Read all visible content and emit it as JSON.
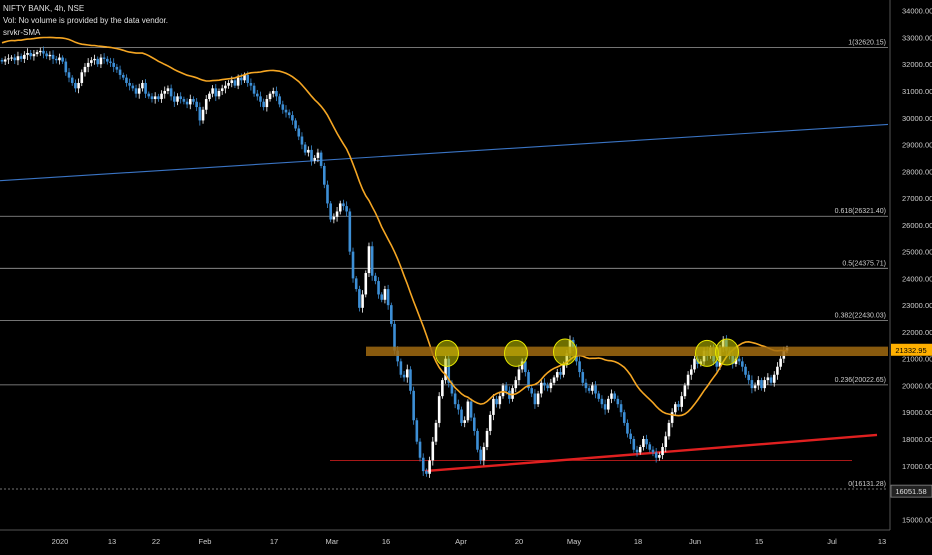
{
  "header": {
    "symbol_line": "NIFTY BANK, 4h, NSE",
    "volume_line": "Vol: No volume is provided by the data vendor.",
    "indicator_line": "srvkr-SMA"
  },
  "colors": {
    "background": "#000000",
    "bullish": "#ffffff",
    "bearish": "#3d8fd6",
    "sma": "#f5a623",
    "blue_trend": "#3a74c4",
    "red_trend": "#e02020",
    "resistance_band": "#a06a10",
    "circle_fill": "#c8c800",
    "fib_line": "#9a9a9a",
    "price_tag": "#ffb000"
  },
  "chart_data": {
    "type": "candlestick",
    "symbol": "NIFTY BANK",
    "timeframe": "4h",
    "exchange": "NSE",
    "y_axis": {
      "min": 14600,
      "max": 34400,
      "ticks": [
        15000,
        16000,
        17000,
        18000,
        19000,
        20000,
        21000,
        22000,
        23000,
        24000,
        25000,
        26000,
        27000,
        28000,
        29000,
        30000,
        31000,
        32000,
        33000,
        34000
      ],
      "tick_labels": [
        "15000.00",
        "16000.00",
        "17000.00",
        "18000.00",
        "19000.00",
        "20000.00",
        "21000.00",
        "22000.00",
        "23000.00",
        "24000.00",
        "25000.00",
        "26000.00",
        "27000.00",
        "28000.00",
        "29000.00",
        "30000.00",
        "31000.00",
        "32000.00",
        "33000.00",
        "34000.00"
      ]
    },
    "x_axis": {
      "labels": [
        "2020",
        "13",
        "22",
        "Feb",
        "17",
        "Mar",
        "16",
        "Apr",
        "20",
        "May",
        "18",
        "Jun",
        "15",
        "Jul",
        "13"
      ]
    },
    "fib_levels": [
      {
        "level": 1,
        "price": 32620.15,
        "label": "1(32620.15)"
      },
      {
        "level": 0.618,
        "price": 26321.4,
        "label": "0.618(26321.40)"
      },
      {
        "level": 0.5,
        "price": 24375.71,
        "label": "0.5(24375.71)"
      },
      {
        "level": 0.382,
        "price": 22430.03,
        "label": "0.382(22430.03)"
      },
      {
        "level": 0.236,
        "price": 20022.65,
        "label": "0.236(20022.65)"
      },
      {
        "level": 0,
        "price": 16131.28,
        "label": "0(16131.28)"
      }
    ],
    "last_price": "21332.95",
    "low_marker": "16051.58",
    "resistance_zone": {
      "low": 21100,
      "high": 21450
    },
    "closes": [
      32100,
      32180,
      32220,
      32250,
      32150,
      32300,
      32200,
      32350,
      32420,
      32300,
      32380,
      32450,
      32500,
      32400,
      32300,
      32350,
      32200,
      32150,
      32250,
      32100,
      31700,
      31500,
      31300,
      31100,
      31300,
      31700,
      31900,
      32050,
      32150,
      32200,
      32000,
      32250,
      32200,
      32100,
      32050,
      31900,
      31800,
      31600,
      31500,
      31300,
      31200,
      31100,
      30900,
      31100,
      31300,
      30900,
      30800,
      30700,
      30800,
      30700,
      30900,
      31000,
      31100,
      30800,
      30600,
      30800,
      30700,
      30600,
      30500,
      30700,
      30600,
      30400,
      29900,
      30300,
      30700,
      30900,
      31100,
      30800,
      31000,
      31100,
      31200,
      31300,
      31400,
      31200,
      31500,
      31400,
      31600,
      31300,
      31200,
      30900,
      30800,
      30600,
      30400,
      30700,
      30900,
      31000,
      30800,
      30500,
      30300,
      30200,
      30100,
      29900,
      29600,
      29300,
      29000,
      28700,
      28800,
      28400,
      28500,
      28700,
      28200,
      27500,
      26800,
      26200,
      26300,
      26500,
      26800,
      26700,
      26500,
      25000,
      24000,
      23600,
      22900,
      23400,
      24200,
      25200,
      24100,
      23900,
      23400,
      23200,
      23600,
      23000,
      22300,
      21300,
      20900,
      20400,
      20300,
      20600,
      19800,
      18700,
      17900,
      17300,
      16800,
      16700,
      17200,
      17900,
      18600,
      19600,
      20200,
      21000,
      20100,
      19700,
      19300,
      19100,
      18600,
      18700,
      19400,
      18800,
      18300,
      17600,
      17200,
      17700,
      18300,
      18900,
      19500,
      19300,
      19600,
      20000,
      19800,
      19500,
      19900,
      20200,
      20600,
      20900,
      20500,
      19900,
      19700,
      19300,
      19700,
      20100,
      20000,
      19900,
      20100,
      20300,
      20500,
      20400,
      20800,
      21200,
      21700,
      21400,
      20900,
      20500,
      20100,
      19900,
      19800,
      20000,
      19700,
      19500,
      19300,
      19100,
      19500,
      19700,
      19500,
      19300,
      19000,
      18600,
      18200,
      18000,
      17600,
      17500,
      17700,
      18000,
      17800,
      17600,
      17500,
      17300,
      17400,
      17700,
      18100,
      18600,
      19000,
      19300,
      19200,
      19600,
      20000,
      20400,
      20600,
      21000,
      20800,
      20900,
      21300,
      21100,
      21400,
      20900,
      20700,
      21400,
      21700,
      21300,
      21100,
      20800,
      21000,
      20900,
      20700,
      20400,
      20200,
      19900,
      20000,
      20200,
      19900,
      20200,
      20300,
      20100,
      20400,
      20700,
      21000,
      21300,
      21400
    ]
  }
}
